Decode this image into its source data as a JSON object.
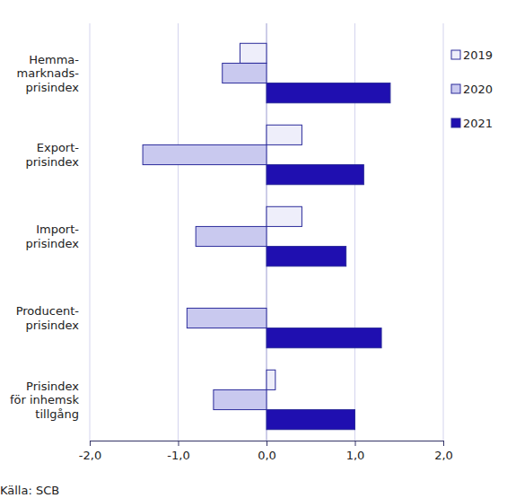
{
  "chart_data": {
    "type": "bar",
    "orientation": "horizontal",
    "categories": [
      "Hemma-\nmarknads-\nprisindex",
      "Export-\nprisindex",
      "Import-\nprisindex",
      "Producent-\nprisindex",
      "Prisindex\nför inhemsk\ntillgång"
    ],
    "series": [
      {
        "name": "2019",
        "color": "#eeeefa",
        "values": [
          -0.3,
          0.4,
          0.4,
          0.0,
          0.1
        ]
      },
      {
        "name": "2020",
        "color": "#c9c9ef",
        "values": [
          -0.5,
          -1.4,
          -0.8,
          -0.9,
          -0.6
        ]
      },
      {
        "name": "2021",
        "color": "#1f0fb0",
        "values": [
          1.4,
          1.1,
          0.9,
          1.3,
          1.0
        ]
      }
    ],
    "xlim": [
      -2,
      2
    ],
    "xticks": [
      {
        "value": -2,
        "label": "-2,0"
      },
      {
        "value": -1,
        "label": "-1,0"
      },
      {
        "value": 0,
        "label": "0,0"
      },
      {
        "value": 1,
        "label": "1,0"
      },
      {
        "value": 2,
        "label": "2,0"
      }
    ],
    "grid": true,
    "legend": "right",
    "source": "Källa: SCB"
  }
}
